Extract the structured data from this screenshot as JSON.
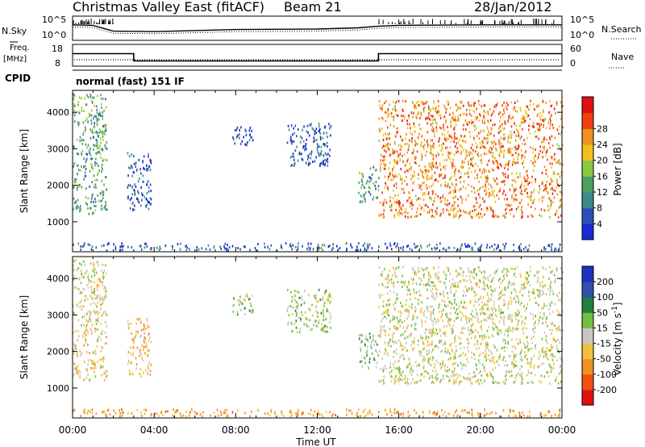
{
  "header": {
    "title": "Christmas Valley East (fitACF)",
    "beam": "Beam 21",
    "date": "28/Jan/2012",
    "cpid_label": "CPID",
    "cpid_value": "normal (fast) 151 IF"
  },
  "strips": {
    "noise_left_label": "N.Sky",
    "noise_right_label": "N.Search",
    "noise_left_ticks": [
      "10^5",
      "10^0"
    ],
    "noise_right_ticks": [
      "10^5",
      "10^0"
    ],
    "freq_left_label_1": "Freq.",
    "freq_left_label_2": "[MHz]",
    "freq_right_label": "Nave",
    "freq_left_ticks": [
      "18",
      "8"
    ],
    "freq_right_ticks": [
      "60",
      "0"
    ]
  },
  "axes": {
    "ylabel": "Slant Range [km]",
    "xlabel": "Time UT",
    "y_ticks": [
      "1000",
      "2000",
      "3000",
      "4000"
    ],
    "x_ticks": [
      "00:00",
      "04:00",
      "08:00",
      "12:00",
      "16:00",
      "20:00",
      "00:00"
    ]
  },
  "colorbars": {
    "power": {
      "label": "Power [dB]",
      "ticks": [
        "4",
        "8",
        "12",
        "16",
        "20",
        "24",
        "28"
      ],
      "colors": [
        "#1a28d8",
        "#2a50b8",
        "#3a8a8a",
        "#4aa060",
        "#8ac840",
        "#f0c020",
        "#f09020",
        "#f04010",
        "#e01010"
      ]
    },
    "velocity": {
      "label": "Velocity [m s^-1]",
      "ticks": [
        "200",
        "100",
        "50",
        "15",
        "-15",
        "-50",
        "-100",
        "-200"
      ],
      "colors": [
        "#2030c0",
        "#3050a8",
        "#208040",
        "#70c040",
        "#c8c8c0",
        "#f0c040",
        "#f09020",
        "#f05010",
        "#e01010"
      ]
    }
  },
  "chart_data": {
    "type": "heatmap",
    "title": "Christmas Valley East (fitACF) Beam 21 28/Jan/2012",
    "xlabel": "Time UT",
    "ylabel": "Slant Range [km]",
    "xlim": [
      "00:00",
      "24:00"
    ],
    "ylim": [
      180,
      4600
    ],
    "noise_range_log10": [
      0,
      5
    ],
    "noise_sky_log10": [
      [
        0.0,
        3.3
      ],
      [
        1.0,
        3.2
      ],
      [
        2.0,
        1.8
      ],
      [
        4.0,
        1.7
      ],
      [
        8.0,
        2.2
      ],
      [
        12.0,
        2.3
      ],
      [
        14.0,
        2.6
      ],
      [
        15.0,
        3.0
      ],
      [
        16.0,
        3.2
      ],
      [
        20.0,
        3.3
      ],
      [
        24.0,
        3.3
      ]
    ],
    "frequency_mhz": [
      [
        0.0,
        13.8
      ],
      [
        3.0,
        13.8
      ],
      [
        3.0,
        10.2
      ],
      [
        15.0,
        10.2
      ],
      [
        15.0,
        13.8
      ],
      [
        24.0,
        13.8
      ]
    ],
    "echo_regions": [
      {
        "start": "00:00",
        "end": "01:40",
        "range_km": [
          1200,
          4500
        ],
        "power_db": 14,
        "velocity": -15
      },
      {
        "start": "02:40",
        "end": "03:50",
        "range_km": [
          1300,
          2900
        ],
        "power_db": 6,
        "velocity": -40
      },
      {
        "start": "07:50",
        "end": "08:50",
        "range_km": [
          3000,
          3600
        ],
        "power_db": 4,
        "velocity": 20
      },
      {
        "start": "10:30",
        "end": "12:40",
        "range_km": [
          2500,
          3700
        ],
        "power_db": 6,
        "velocity": 10
      },
      {
        "start": "14:00",
        "end": "15:00",
        "range_km": [
          1500,
          2500
        ],
        "power_db": 12,
        "velocity": 30
      },
      {
        "start": "15:00",
        "end": "24:00",
        "range_km": [
          1100,
          4300
        ],
        "power_db": 26,
        "velocity": -5
      },
      {
        "start": "00:00",
        "end": "24:00",
        "range_km": [
          200,
          400
        ],
        "power_db": 6,
        "velocity": -60
      }
    ]
  }
}
